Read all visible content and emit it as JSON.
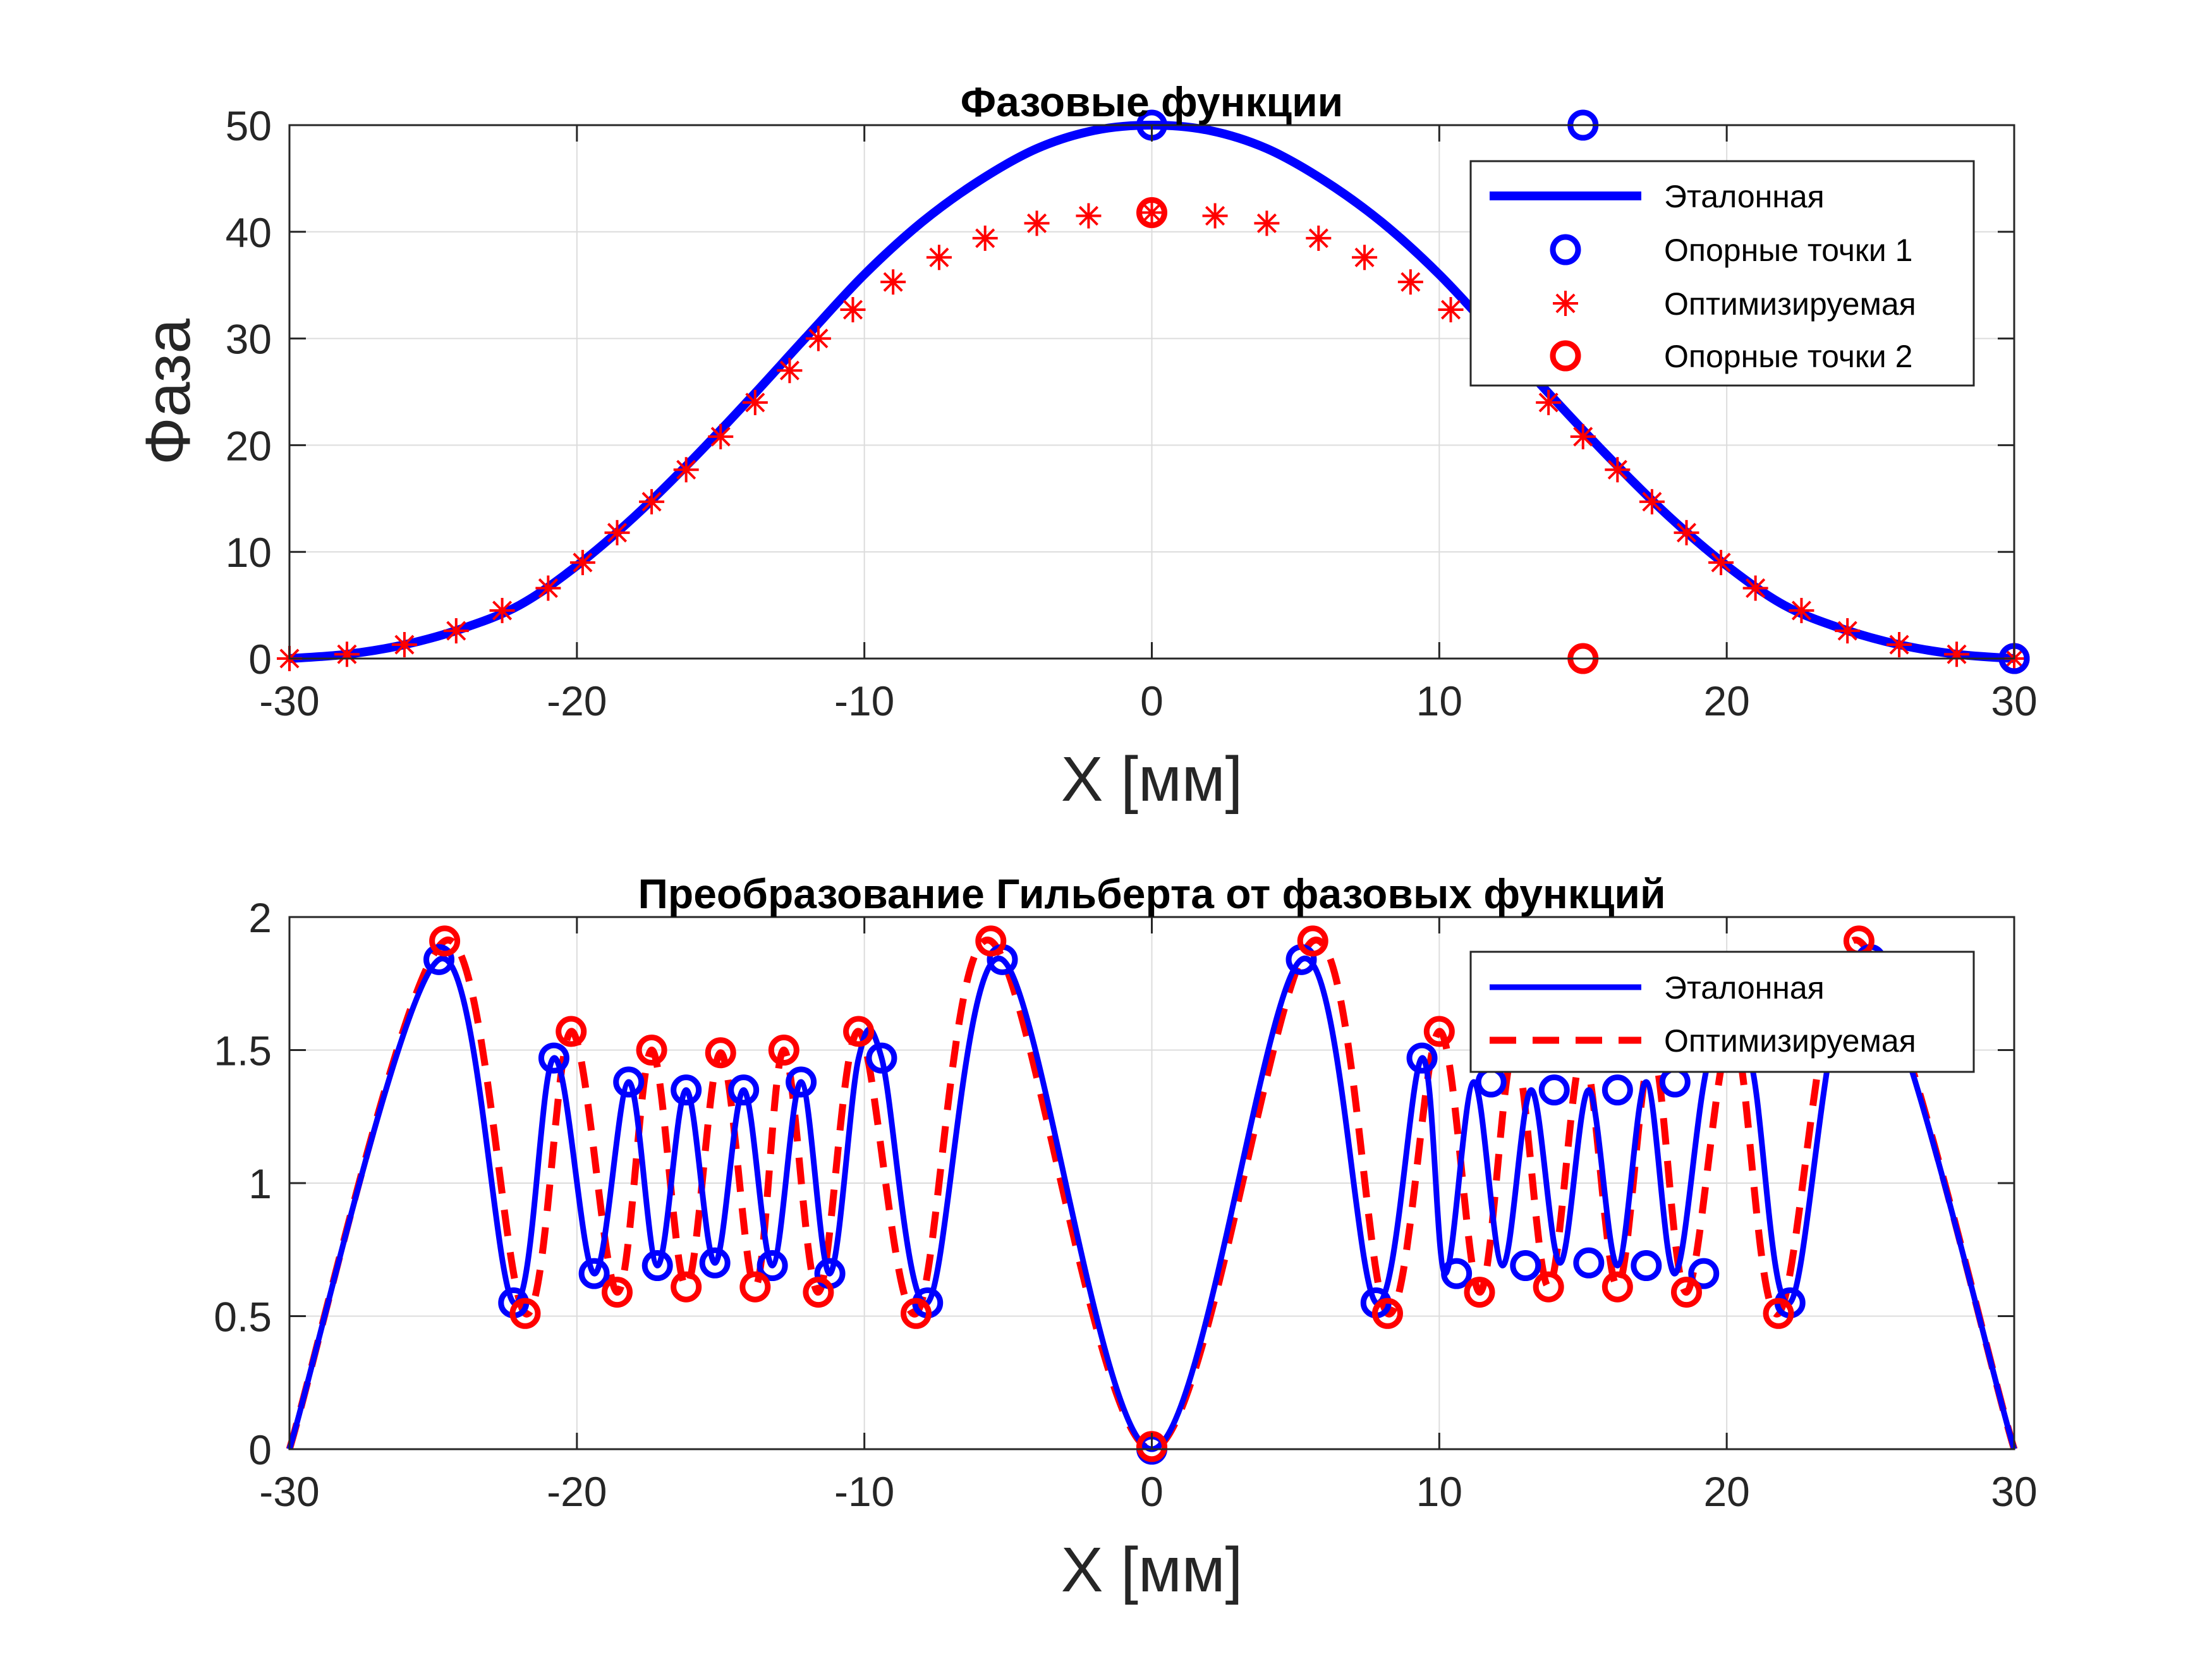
{
  "colors": {
    "blue": "#0000ff",
    "red": "#ff0000",
    "grid": "#dcdcdc",
    "axis": "#262626"
  },
  "chart_data": [
    {
      "type": "line",
      "title": "Фазовые функции",
      "xlabel": "X [мм]",
      "ylabel": "Фаза",
      "xlim": [
        -30,
        30
      ],
      "ylim": [
        0,
        50
      ],
      "xticks": [
        -30,
        -20,
        -10,
        0,
        10,
        20,
        30
      ],
      "yticks": [
        0,
        10,
        20,
        30,
        40,
        50
      ],
      "xtick_labels": [
        "-30",
        "-20",
        "-10",
        "0",
        "10",
        "20",
        "30"
      ],
      "ytick_labels": [
        "0",
        "10",
        "20",
        "30",
        "40",
        "50"
      ],
      "grid": true,
      "legend_position": "top-right",
      "series": [
        {
          "name": "Эталонная",
          "style": "solid-line",
          "color": "#0000ff",
          "x": [
            -30,
            -28,
            -26,
            -24,
            -22,
            -20,
            -18,
            -16,
            -14,
            -12,
            -10,
            -8,
            -6,
            -4,
            -2,
            0,
            2,
            4,
            6,
            8,
            10,
            12,
            14,
            16,
            18,
            20,
            22,
            24,
            26,
            28,
            30
          ],
          "y": [
            0,
            0.4,
            1.3,
            2.8,
            5.0,
            8.7,
            13.3,
            18.6,
            24.3,
            30.2,
            36.0,
            40.9,
            44.8,
            47.8,
            49.5,
            50,
            49.5,
            47.8,
            44.8,
            40.9,
            36.0,
            30.2,
            24.3,
            18.6,
            13.3,
            8.7,
            5.0,
            2.8,
            1.3,
            0.4,
            0
          ]
        },
        {
          "name": "Опорные точки 1",
          "style": "circle-markers",
          "color": "#0000ff",
          "x": [
            0,
            15
          ],
          "y": [
            50,
            50
          ]
        },
        {
          "name": "Оптимизируемая",
          "style": "star-markers",
          "color": "#ff0000",
          "x": [
            -30,
            -28,
            -26,
            -24.2,
            -22.6,
            -21,
            -19.8,
            -18.6,
            -17.4,
            -16.2,
            -15,
            -13.8,
            -12.6,
            -11.6,
            -10.4,
            -9,
            -7.4,
            -5.8,
            -4,
            -2.2,
            0,
            2.2,
            4,
            5.8,
            7.4,
            9,
            10.4,
            11.6,
            12.6,
            13.8,
            15,
            16.2,
            17.4,
            18.6,
            19.8,
            21,
            22.6,
            24.2,
            26,
            28,
            30
          ],
          "y": [
            0,
            0.4,
            1.3,
            2.6,
            4.5,
            6.6,
            9.0,
            11.8,
            14.7,
            17.7,
            20.8,
            24.0,
            27.0,
            30.0,
            32.7,
            35.3,
            37.6,
            39.4,
            40.8,
            41.5,
            41.8,
            41.5,
            40.8,
            39.4,
            37.6,
            35.3,
            32.7,
            30.0,
            27.0,
            24.0,
            20.8,
            17.7,
            14.7,
            11.8,
            9.0,
            6.6,
            4.5,
            2.6,
            1.3,
            0.4,
            0
          ]
        },
        {
          "name": "Опорные точки 2",
          "style": "circle-markers",
          "color": "#ff0000",
          "x": [
            0,
            15,
            30
          ],
          "y": [
            41.8,
            0,
            0
          ]
        }
      ],
      "extra_markers": [
        {
          "x": 30,
          "y": 0,
          "style": "circle-markers",
          "color": "#0000ff"
        }
      ]
    },
    {
      "type": "line",
      "title": "Преобразование Гильберта от фазовых функций",
      "xlabel": "X [мм]",
      "ylabel": "",
      "xlim": [
        -30,
        30
      ],
      "ylim": [
        0,
        2
      ],
      "xticks": [
        -30,
        -20,
        -10,
        0,
        10,
        20,
        30
      ],
      "yticks": [
        0,
        0.5,
        1,
        1.5,
        2
      ],
      "xtick_labels": [
        "-30",
        "-20",
        "-10",
        "0",
        "10",
        "20",
        "30"
      ],
      "ytick_labels": [
        "0",
        "0.5",
        "1",
        "1.5",
        "2"
      ],
      "grid": true,
      "legend_position": "top-right",
      "series": [
        {
          "name": "Эталонная",
          "style": "solid-line",
          "color": "#0000ff",
          "x": [
            -30,
            -24.8,
            -22.2,
            -20.8,
            -19.4,
            -18.2,
            -17.2,
            -16.2,
            -15.2,
            -14.2,
            -13.2,
            -12.2,
            -11.2,
            -10.2,
            -9.4,
            -7.8,
            -5.2,
            0,
            5.2,
            7.8,
            9.4,
            10.2,
            11.2,
            12.2,
            13.2,
            14.2,
            15.2,
            16.2,
            17.2,
            18.2,
            19.4,
            20.8,
            22.2,
            24.8,
            30
          ],
          "y": [
            0,
            1.84,
            0.55,
            1.47,
            0.66,
            1.38,
            0.69,
            1.35,
            0.7,
            1.35,
            0.69,
            1.38,
            0.66,
            1.47,
            1.47,
            0.55,
            1.84,
            0,
            1.84,
            0.55,
            1.47,
            0.66,
            1.38,
            0.69,
            1.35,
            0.7,
            1.35,
            0.69,
            1.38,
            0.66,
            1.47,
            1.47,
            0.55,
            1.84,
            0
          ]
        },
        {
          "name": "Оптимизируемая",
          "style": "dashed-line",
          "color": "#ff0000",
          "x": [
            -30,
            -24.6,
            -21.8,
            -20.2,
            -18.6,
            -17.4,
            -16.2,
            -15,
            -13.8,
            -12.8,
            -11.6,
            -10.2,
            -8.2,
            -5.6,
            0,
            5.6,
            8.2,
            10,
            11.4,
            12.6,
            13.8,
            15,
            16.2,
            17.4,
            18.6,
            20.2,
            21.8,
            24.6,
            30
          ],
          "y": [
            0,
            1.91,
            0.51,
            1.57,
            0.59,
            1.5,
            0.61,
            1.49,
            0.61,
            1.5,
            0.59,
            1.57,
            0.51,
            1.91,
            0,
            1.91,
            0.51,
            1.57,
            0.59,
            1.5,
            0.61,
            1.49,
            0.61,
            1.5,
            0.59,
            1.57,
            0.51,
            1.91,
            0
          ]
        }
      ],
      "markers_blue": {
        "x": [
          -24.8,
          -22.2,
          -20.8,
          -19.4,
          -18.2,
          -17.2,
          -16.2,
          -15.2,
          -14.2,
          -13.2,
          -12.2,
          -11.2,
          -9.4,
          -7.8,
          -5.2,
          0,
          5.2,
          7.8,
          9.4,
          10.6,
          11.8,
          13,
          14,
          15.2,
          16.2,
          17.2,
          18.2,
          19.2,
          22.2,
          25
        ],
        "y": [
          1.84,
          0.55,
          1.47,
          0.66,
          1.38,
          0.69,
          1.35,
          0.7,
          1.35,
          0.69,
          1.38,
          0.66,
          1.47,
          0.55,
          1.84,
          0,
          1.84,
          0.55,
          1.47,
          0.66,
          1.38,
          0.69,
          1.35,
          0.7,
          1.35,
          0.69,
          1.38,
          0.66,
          0.55,
          1.84
        ]
      },
      "markers_red": {
        "x": [
          -24.6,
          -21.8,
          -20.2,
          -18.6,
          -17.4,
          -16.2,
          -15,
          -13.8,
          -12.8,
          -11.6,
          -10.2,
          -8.2,
          -5.6,
          0,
          5.6,
          8.2,
          10,
          11.4,
          13.8,
          16.2,
          18.6,
          21.8,
          24.6
        ],
        "y": [
          1.91,
          0.51,
          1.57,
          0.59,
          1.5,
          0.61,
          1.49,
          0.61,
          1.5,
          0.59,
          1.57,
          0.51,
          1.91,
          0.01,
          1.91,
          0.51,
          1.57,
          0.59,
          0.61,
          0.61,
          0.59,
          0.51,
          1.91
        ]
      }
    }
  ]
}
